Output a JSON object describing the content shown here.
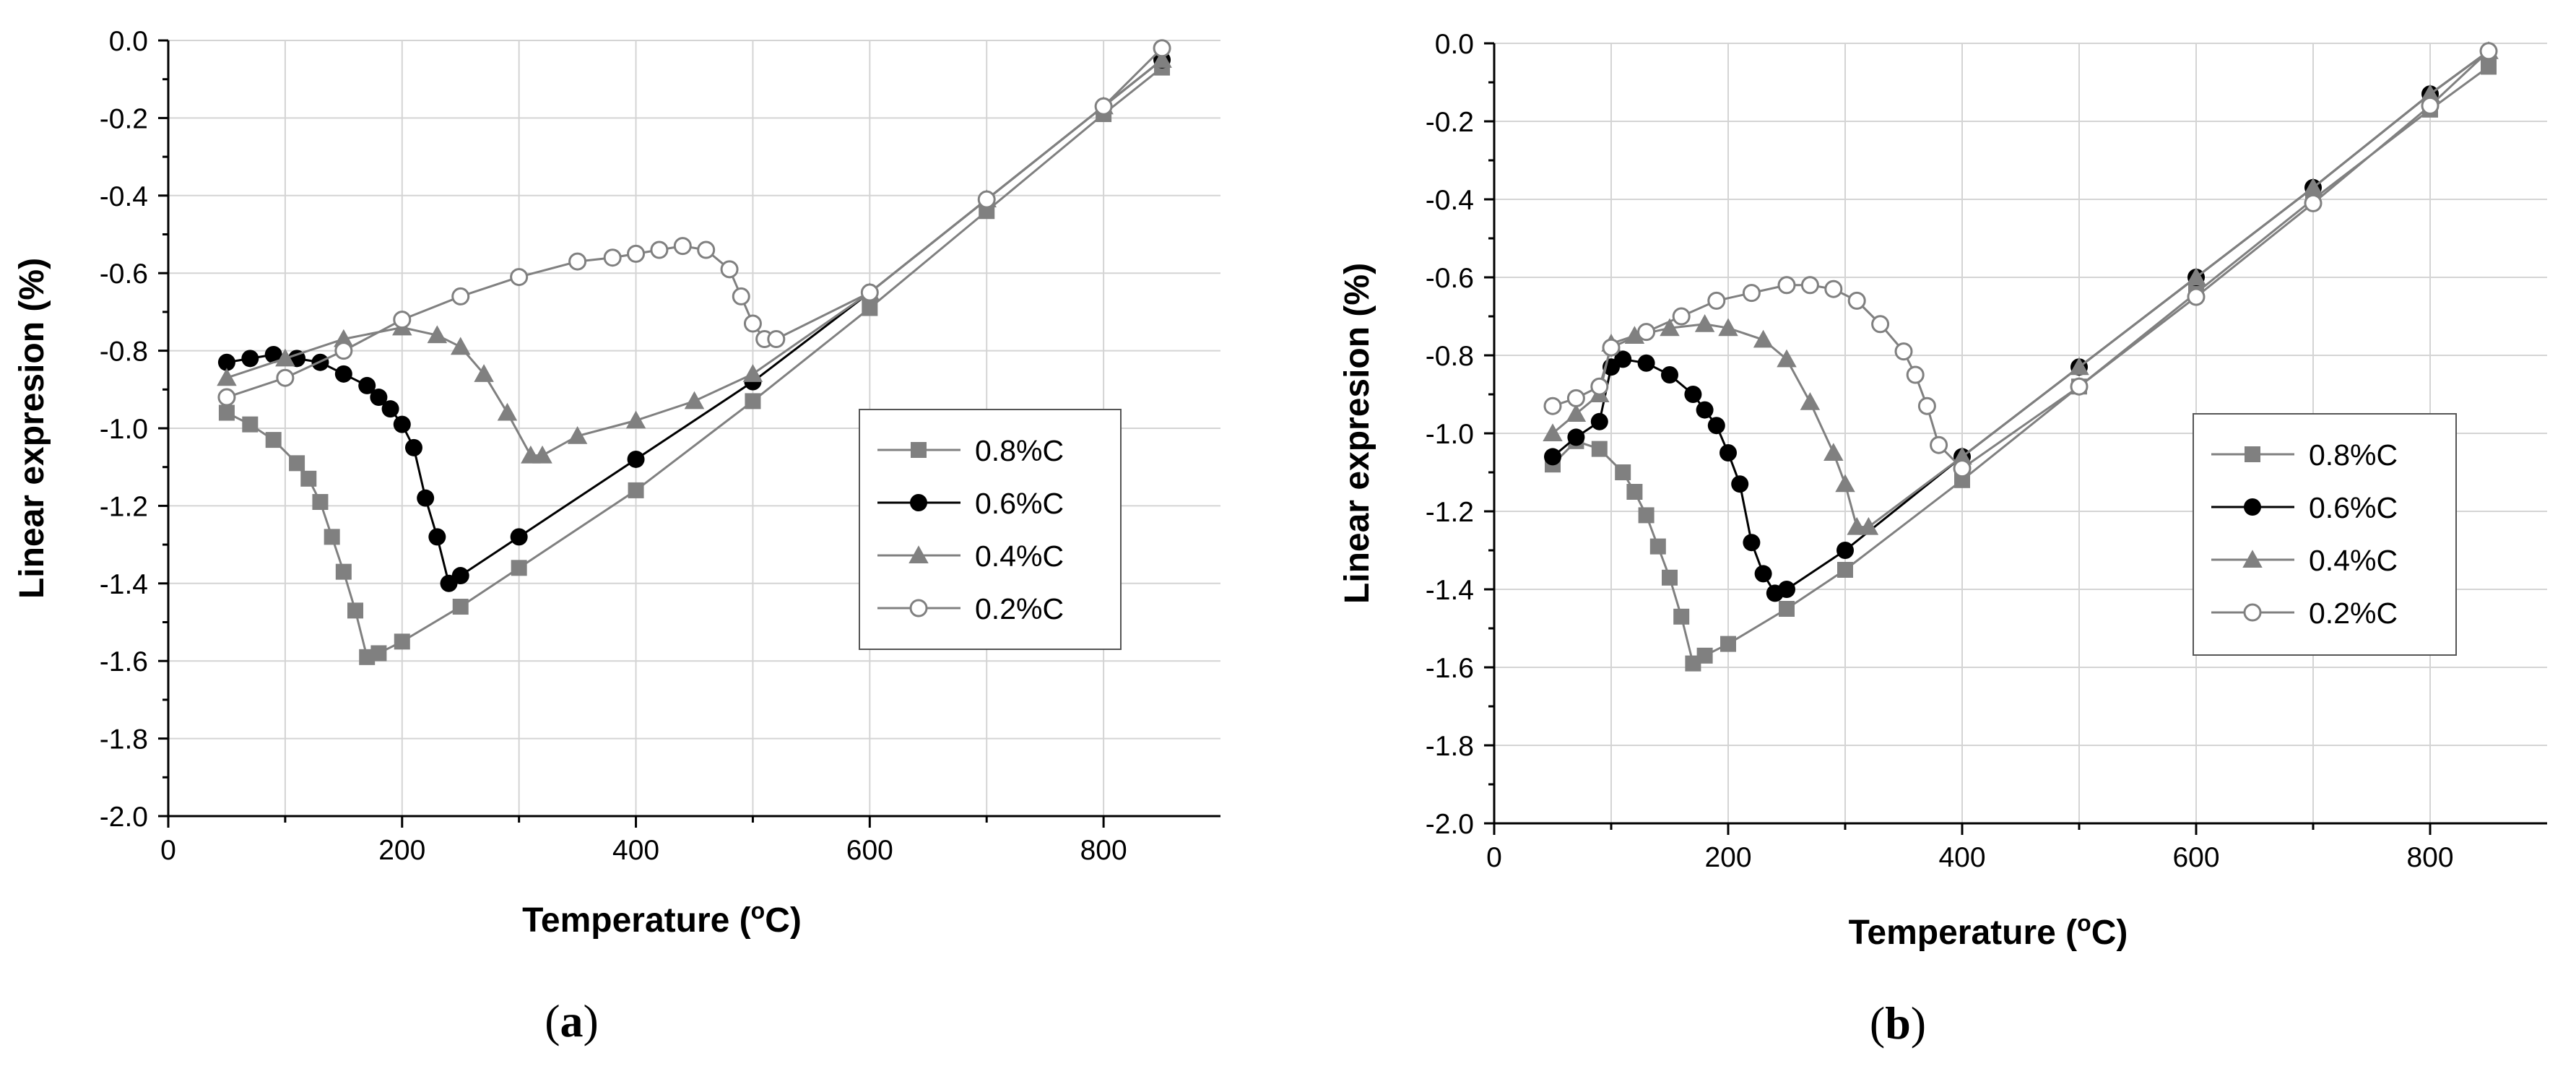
{
  "chart_data": [
    {
      "type": "line",
      "panel_label": "a",
      "xlabel": "Temperature (",
      "xlabel_sup": "o",
      "xlabel_end": "C)",
      "ylabel": "Linear  expresion (%)",
      "xlim": [
        0,
        900
      ],
      "ylim": [
        -2.0,
        0.0
      ],
      "xticks": [
        0,
        200,
        400,
        600,
        800
      ],
      "xtick_labels": [
        "0",
        "200",
        "400",
        "600",
        "800"
      ],
      "yticks": [
        0.0,
        -0.2,
        -0.4,
        -0.6,
        -0.8,
        -1.0,
        -1.2,
        -1.4,
        -1.6,
        -1.8,
        -2.0
      ],
      "ytick_labels": [
        "0.0",
        "-0.2",
        "-0.4",
        "-0.6",
        "-0.8",
        "-1.0",
        "-1.2",
        "-1.4",
        "-1.6",
        "-1.8",
        "-2.0"
      ],
      "grid": true,
      "legend_position": "right",
      "legend_entries": [
        "0.8%C",
        "0.6%C",
        "0.4%C",
        "0.2%C"
      ],
      "series": [
        {
          "name": "0.8%C",
          "marker": "square",
          "color": "#808080",
          "x": [
            50,
            70,
            90,
            110,
            120,
            130,
            140,
            150,
            160,
            170,
            180,
            200,
            250,
            300,
            400,
            500,
            600,
            700,
            800,
            850
          ],
          "y": [
            -0.96,
            -0.99,
            -1.03,
            -1.09,
            -1.13,
            -1.19,
            -1.28,
            -1.37,
            -1.47,
            -1.59,
            -1.58,
            -1.55,
            -1.46,
            -1.36,
            -1.16,
            -0.93,
            -0.69,
            -0.44,
            -0.19,
            -0.07
          ]
        },
        {
          "name": "0.6%C",
          "marker": "circle",
          "color": "#000000",
          "x": [
            50,
            70,
            90,
            110,
            130,
            150,
            170,
            180,
            190,
            200,
            210,
            220,
            230,
            240,
            250,
            300,
            400,
            500,
            600,
            700,
            800,
            850
          ],
          "y": [
            -0.83,
            -0.82,
            -0.81,
            -0.82,
            -0.83,
            -0.86,
            -0.89,
            -0.92,
            -0.95,
            -0.99,
            -1.05,
            -1.18,
            -1.28,
            -1.4,
            -1.38,
            -1.28,
            -1.08,
            -0.88,
            -0.65,
            -0.41,
            -0.17,
            -0.05
          ]
        },
        {
          "name": "0.4%C",
          "marker": "triangle",
          "color": "#808080",
          "x": [
            50,
            100,
            150,
            200,
            230,
            250,
            270,
            290,
            310,
            320,
            350,
            400,
            450,
            500,
            600,
            700,
            800,
            850
          ],
          "y": [
            -0.87,
            -0.82,
            -0.77,
            -0.74,
            -0.76,
            -0.79,
            -0.86,
            -0.96,
            -1.07,
            -1.07,
            -1.02,
            -0.98,
            -0.93,
            -0.86,
            -0.65,
            -0.41,
            -0.17,
            -0.05
          ]
        },
        {
          "name": "0.2%C",
          "marker": "open-circle",
          "color": "#808080",
          "x": [
            50,
            100,
            150,
            200,
            250,
            300,
            350,
            380,
            400,
            420,
            440,
            460,
            480,
            490,
            500,
            510,
            520,
            600,
            700,
            800,
            850
          ],
          "y": [
            -0.92,
            -0.87,
            -0.8,
            -0.72,
            -0.66,
            -0.61,
            -0.57,
            -0.56,
            -0.55,
            -0.54,
            -0.53,
            -0.54,
            -0.59,
            -0.66,
            -0.73,
            -0.77,
            -0.77,
            -0.65,
            -0.41,
            -0.17,
            -0.02
          ]
        }
      ]
    },
    {
      "type": "line",
      "panel_label": "b",
      "xlabel": "Temperature (",
      "xlabel_sup": "o",
      "xlabel_end": "C)",
      "ylabel": "Linear  expresion (%)",
      "xlim": [
        0,
        900
      ],
      "ylim": [
        -2.0,
        0.0
      ],
      "xticks": [
        0,
        200,
        400,
        600,
        800
      ],
      "xtick_labels": [
        "0",
        "200",
        "400",
        "600",
        "800"
      ],
      "yticks": [
        0.0,
        -0.2,
        -0.4,
        -0.6,
        -0.8,
        -1.0,
        -1.2,
        -1.4,
        -1.6,
        -1.8,
        -2.0
      ],
      "ytick_labels": [
        "0.0",
        "-0.2",
        "-0.4",
        "-0.6",
        "-0.8",
        "-1.0",
        "-1.2",
        "-1.4",
        "-1.6",
        "-1.8",
        "-2.0"
      ],
      "grid": true,
      "legend_position": "right",
      "legend_entries": [
        "0.8%C",
        "0.6%C",
        "0.4%C",
        "0.2%C"
      ],
      "series": [
        {
          "name": "0.8%C",
          "marker": "square",
          "color": "#808080",
          "x": [
            50,
            70,
            90,
            110,
            120,
            130,
            140,
            150,
            160,
            170,
            180,
            200,
            250,
            300,
            400,
            500,
            600,
            700,
            800,
            850
          ],
          "y": [
            -1.08,
            -1.02,
            -1.04,
            -1.1,
            -1.15,
            -1.21,
            -1.29,
            -1.37,
            -1.47,
            -1.59,
            -1.57,
            -1.54,
            -1.45,
            -1.35,
            -1.12,
            -0.88,
            -0.64,
            -0.4,
            -0.17,
            -0.06
          ]
        },
        {
          "name": "0.6%C",
          "marker": "circle",
          "color": "#000000",
          "x": [
            50,
            70,
            90,
            100,
            110,
            130,
            150,
            170,
            180,
            190,
            200,
            210,
            220,
            230,
            240,
            250,
            300,
            400,
            500,
            600,
            700,
            800,
            850
          ],
          "y": [
            -1.06,
            -1.01,
            -0.97,
            -0.83,
            -0.81,
            -0.82,
            -0.85,
            -0.9,
            -0.94,
            -0.98,
            -1.05,
            -1.13,
            -1.28,
            -1.36,
            -1.41,
            -1.4,
            -1.3,
            -1.06,
            -0.83,
            -0.6,
            -0.37,
            -0.13,
            -0.02
          ]
        },
        {
          "name": "0.4%C",
          "marker": "triangle",
          "color": "#808080",
          "x": [
            50,
            70,
            90,
            100,
            120,
            150,
            180,
            200,
            230,
            250,
            270,
            290,
            300,
            310,
            320,
            400,
            500,
            600,
            700,
            800,
            850
          ],
          "y": [
            -1.0,
            -0.95,
            -0.9,
            -0.77,
            -0.75,
            -0.73,
            -0.72,
            -0.73,
            -0.76,
            -0.81,
            -0.92,
            -1.05,
            -1.13,
            -1.24,
            -1.24,
            -1.06,
            -0.83,
            -0.6,
            -0.37,
            -0.13,
            -0.02
          ]
        },
        {
          "name": "0.2%C",
          "marker": "open-circle",
          "color": "#808080",
          "x": [
            50,
            70,
            90,
            100,
            130,
            160,
            190,
            220,
            250,
            270,
            290,
            310,
            330,
            350,
            360,
            370,
            380,
            400,
            500,
            600,
            700,
            800,
            850
          ],
          "y": [
            -0.93,
            -0.91,
            -0.88,
            -0.78,
            -0.74,
            -0.7,
            -0.66,
            -0.64,
            -0.62,
            -0.62,
            -0.63,
            -0.66,
            -0.72,
            -0.79,
            -0.85,
            -0.93,
            -1.03,
            -1.09,
            -0.88,
            -0.65,
            -0.41,
            -0.16,
            -0.02
          ]
        }
      ]
    }
  ]
}
